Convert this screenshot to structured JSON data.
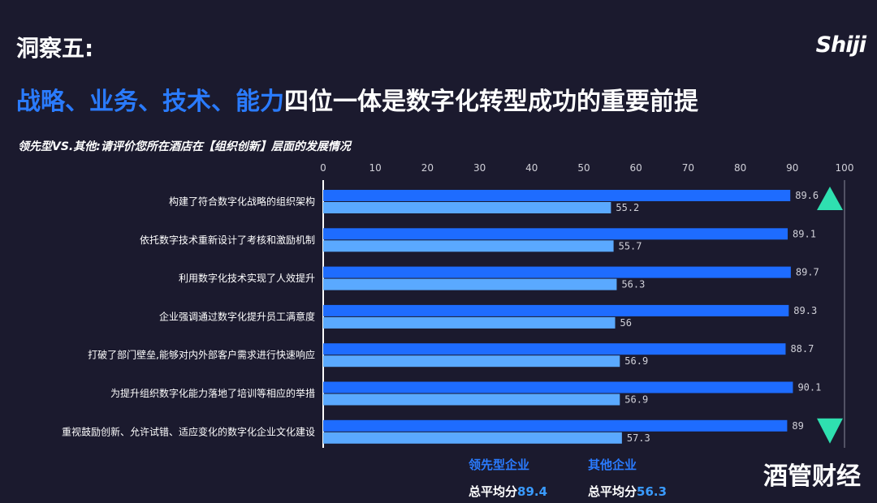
{
  "header": {
    "title": "洞察五:",
    "logo": "Shiji",
    "subtitle_highlight": "战略、业务、技术、能力",
    "subtitle_rest": "四位一体是数字化转型成功的重要前提",
    "question": "领先型VS.其他:请评价您所在酒店在【组织创新】层面的发展情况"
  },
  "legend": {
    "leading": {
      "name": "领先型企业",
      "avg_label": "总平均分",
      "avg_value": "89.4"
    },
    "other": {
      "name": "其他企业",
      "avg_label": "总平均分",
      "avg_value": "56.3"
    }
  },
  "watermark": "酒管财经",
  "colors": {
    "leading": "#1e6cff",
    "other": "#5aa9ff",
    "marker": "#2fe0b0",
    "label": "#d0d0d8"
  },
  "chart_data": {
    "type": "bar",
    "orientation": "horizontal",
    "categories": [
      "构建了符合数字化战略的组织架构",
      "依托数字技术重新设计了考核和激励机制",
      "利用数字化技术实现了人效提升",
      "企业强调通过数字化提升员工满意度",
      "打破了部门壁垒,能够对内外部客户需求进行快速响应",
      "为提升组织数字化能力落地了培训等相应的举措",
      "重视鼓励创新、允许试错、适应变化的数字化企业文化建设"
    ],
    "series": [
      {
        "name": "领先型企业",
        "values": [
          89.6,
          89.1,
          89.7,
          89.3,
          88.7,
          90.1,
          89
        ],
        "labels": [
          "89.6",
          "89.1",
          "89.7",
          "89.3",
          "88.7",
          "90.1",
          "89"
        ]
      },
      {
        "name": "其他企业",
        "values": [
          55.2,
          55.7,
          56.3,
          56,
          56.9,
          56.9,
          57.3
        ],
        "labels": [
          "55.2",
          "55.7",
          "56.3",
          "56",
          "56.9",
          "56.9",
          "57.3"
        ]
      }
    ],
    "xlim": [
      0,
      100
    ],
    "xticks": [
      "0",
      "10",
      "20",
      "30",
      "40",
      "50",
      "60",
      "70",
      "80",
      "90",
      "100"
    ],
    "markers": [
      {
        "category_index": 0,
        "shape": "triangle-up"
      },
      {
        "category_index": 6,
        "shape": "triangle-down"
      }
    ]
  }
}
